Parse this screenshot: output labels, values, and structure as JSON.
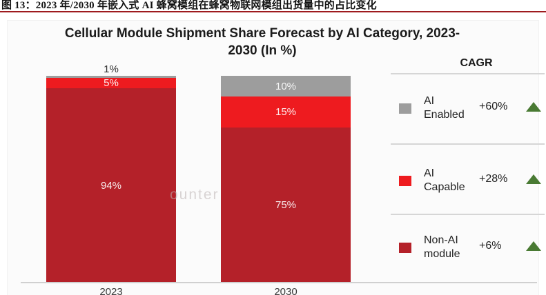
{
  "figure_caption": {
    "text": "图 13：2023 年/2030 年嵌入式 AI 蜂窝模组在蜂窝物联网模组出货量中的占比变化",
    "underline_color": "#9e1b1e"
  },
  "chart": {
    "title_line1": "Cellular Module Shipment Share Forecast by AI Category, 2023-",
    "title_line2": "2030 (In %)",
    "watermark": "ounter"
  },
  "legend": {
    "header": "CAGR",
    "items": [
      {
        "name": "AI Enabled",
        "label_line1": "AI",
        "label_line2": "Enabled",
        "cagr": "+60%",
        "swatch_color": "#9d9d9d"
      },
      {
        "name": "AI Capable",
        "label_line1": "AI",
        "label_line2": "Capable",
        "cagr": "+28%",
        "swatch_color": "#ee1b1f"
      },
      {
        "name": "Non-AI module",
        "label_line1": "Non-AI",
        "label_line2": "module",
        "cagr": "+6%",
        "swatch_color": "#b42129"
      }
    ],
    "trend_triangle_color": "#497a33"
  },
  "chart_data": {
    "type": "bar",
    "stacked": true,
    "title": "Cellular Module Shipment Share Forecast by AI Category, 2023-2030 (In %)",
    "unit": "%",
    "ylim": [
      0,
      100
    ],
    "grid": false,
    "legend_position": "right",
    "legend_header": "CAGR",
    "categories": [
      "2023",
      "2030"
    ],
    "series": [
      {
        "name": "AI Enabled",
        "color": "#9d9d9d",
        "values": [
          1,
          10
        ],
        "labels": [
          "1%",
          "10%"
        ],
        "cagr": "+60%"
      },
      {
        "name": "AI Capable",
        "color": "#ee1b1f",
        "values": [
          5,
          15
        ],
        "labels": [
          "5%",
          "15%"
        ],
        "cagr": "+28%"
      },
      {
        "name": "Non-AI module",
        "color": "#b42129",
        "values": [
          94,
          75
        ],
        "labels": [
          "94%",
          "75%"
        ],
        "cagr": "+6%"
      }
    ]
  }
}
